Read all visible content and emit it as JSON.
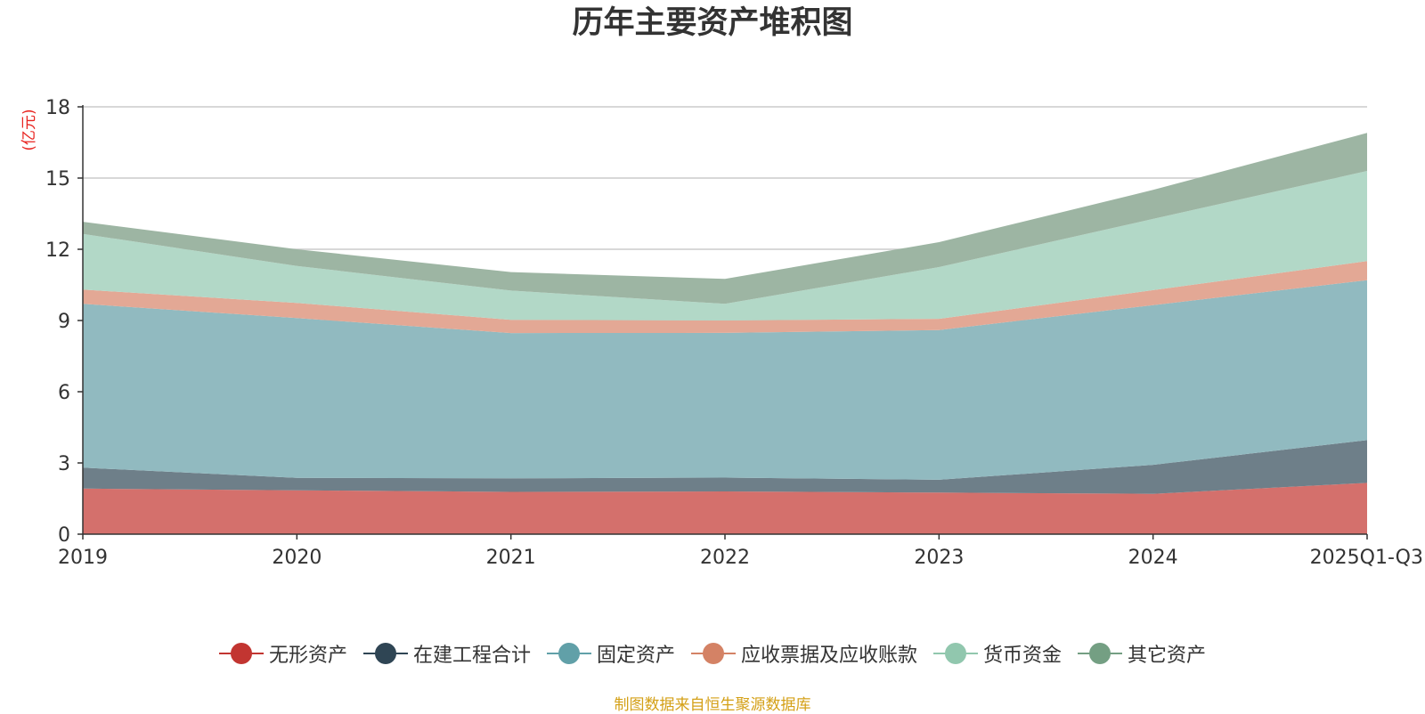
{
  "chart_data": {
    "type": "area",
    "stacked": true,
    "title": "历年主要资产堆积图",
    "ylabel": "(亿元)",
    "xlabel": "",
    "categories": [
      "2019",
      "2020",
      "2021",
      "2022",
      "2023",
      "2024",
      "2025Q1-Q3"
    ],
    "ylim": [
      0,
      18
    ],
    "yticks": [
      0,
      3,
      6,
      9,
      12,
      15,
      18
    ],
    "grid": true,
    "legend_position": "bottom",
    "series": [
      {
        "name": "无形资产",
        "color": "#c23531",
        "fill": "#d4706c",
        "values": [
          1.92,
          1.85,
          1.78,
          1.8,
          1.75,
          1.7,
          2.16
        ]
      },
      {
        "name": "在建工程合计",
        "color": "#2f4554",
        "fill": "#6e7f89",
        "values": [
          0.88,
          0.52,
          0.57,
          0.58,
          0.54,
          1.22,
          1.8
        ]
      },
      {
        "name": "固定资产",
        "color": "#61a0a8",
        "fill": "#91bac0",
        "values": [
          6.9,
          6.73,
          6.12,
          6.1,
          6.31,
          6.73,
          6.74
        ]
      },
      {
        "name": "应收票据及应收账款",
        "color": "#d48265",
        "fill": "#e3a895",
        "values": [
          0.6,
          0.64,
          0.56,
          0.52,
          0.47,
          0.63,
          0.8
        ]
      },
      {
        "name": "货币资金",
        "color": "#91c7ae",
        "fill": "#b2d8c7",
        "values": [
          2.35,
          1.56,
          1.23,
          0.7,
          2.18,
          3.0,
          3.8
        ]
      },
      {
        "name": "其它资产",
        "color": "#749f83",
        "fill": "#9db5a3",
        "values": [
          0.51,
          0.7,
          0.78,
          1.05,
          1.05,
          1.22,
          1.6
        ]
      }
    ]
  },
  "source_note": "制图数据来自恒生聚源数据库"
}
